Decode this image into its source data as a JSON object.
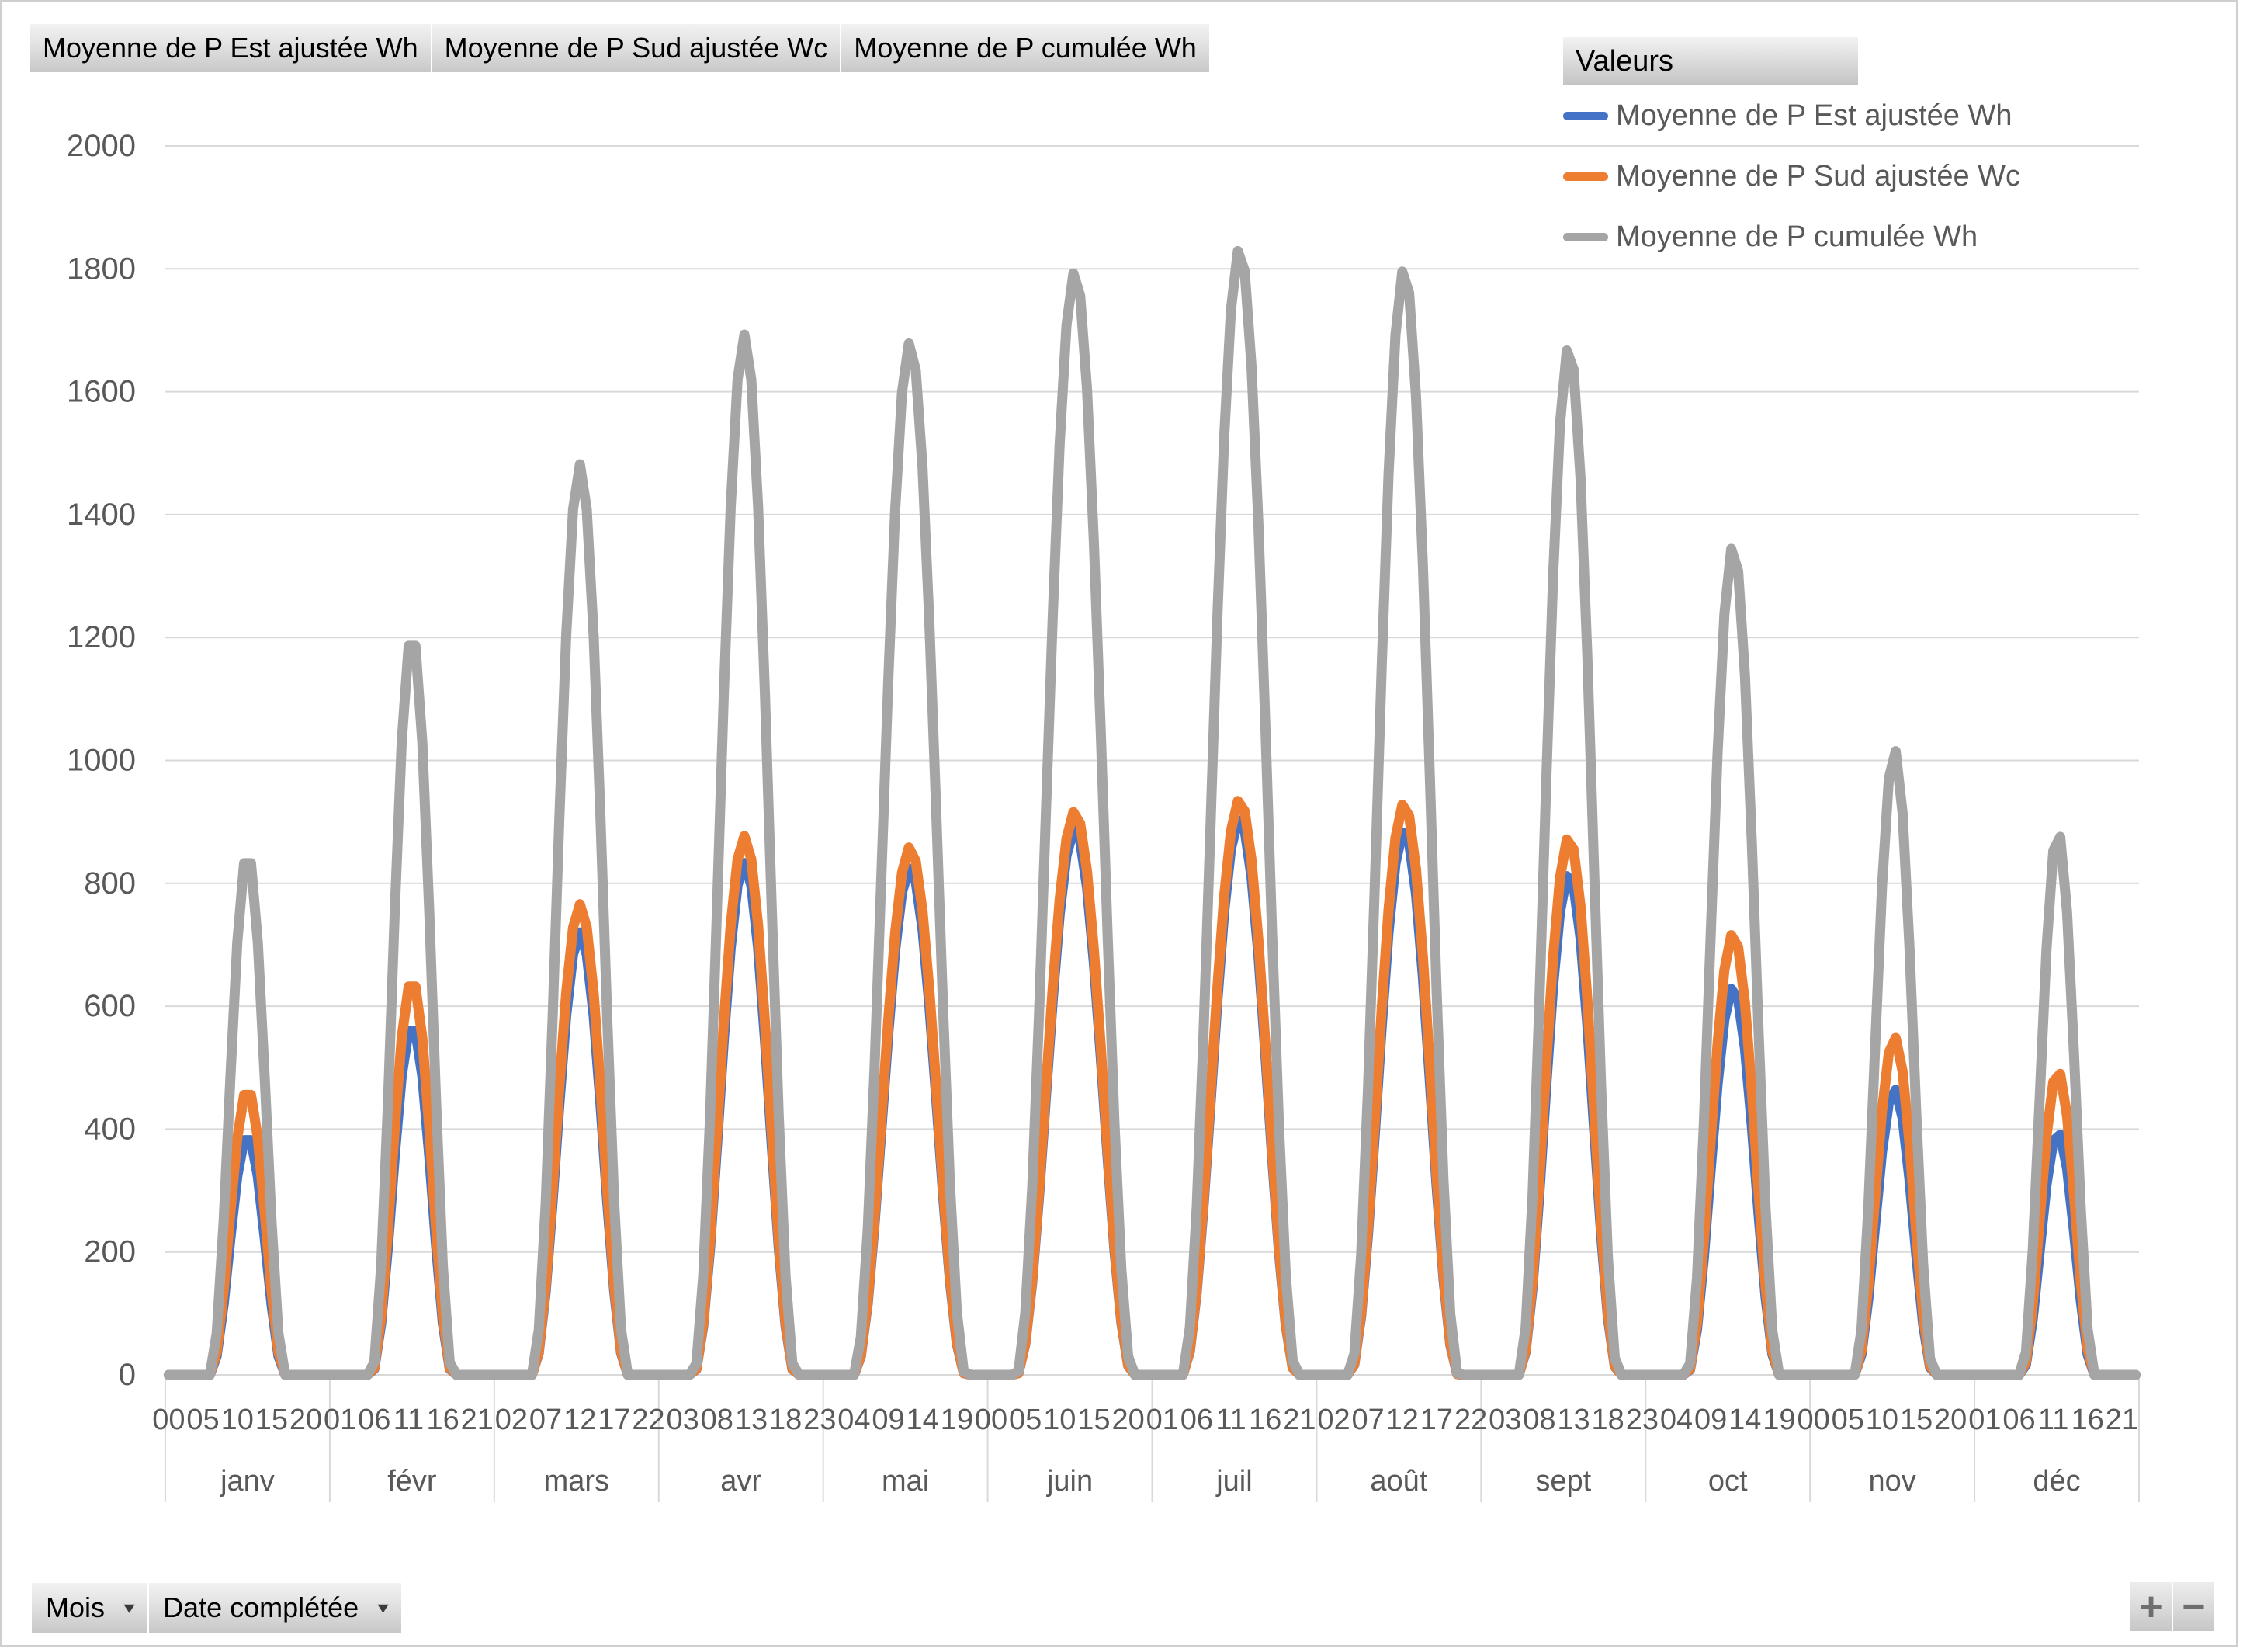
{
  "field_buttons": [
    {
      "label": "Moyenne de P Est ajustée Wh"
    },
    {
      "label": "Moyenne de P Sud ajustée Wc"
    },
    {
      "label": "Moyenne de P cumulée Wh"
    }
  ],
  "legend": {
    "title": "Valeurs",
    "items": [
      {
        "label": "Moyenne de P Est ajustée Wh",
        "color": "#4472C4"
      },
      {
        "label": "Moyenne de P Sud ajustée Wc",
        "color": "#ED7D31"
      },
      {
        "label": "Moyenne de P cumulée Wh",
        "color": "#A5A5A5"
      }
    ]
  },
  "bottom_field_buttons": [
    {
      "label": "Mois",
      "arrow": "▾"
    },
    {
      "label": "Date complétée",
      "arrow": "▾"
    }
  ],
  "zoom_buttons": {
    "plus": "+",
    "minus": "−"
  },
  "chart_data": {
    "type": "line",
    "title": "",
    "xlabel": "",
    "ylabel": "",
    "ylim": [
      0,
      2000
    ],
    "y_tick_step": 200,
    "y_tick_labels": [
      "0",
      "200",
      "400",
      "600",
      "800",
      "1000",
      "1200",
      "1400",
      "1600",
      "1800",
      "2000"
    ],
    "grid": "horizontal",
    "legend_position": "top-right",
    "months": [
      "janv",
      "févr",
      "mars",
      "avr",
      "mai",
      "juin",
      "juil",
      "août",
      "sept",
      "oct",
      "nov",
      "déc"
    ],
    "hours_per_month": 24,
    "hour_tick_interval": 5,
    "hour_tick_labels": [
      "00",
      "05",
      "10",
      "15",
      "20",
      "01",
      "06",
      "11",
      "16",
      "21",
      "02",
      "07",
      "12",
      "17",
      "22",
      "03",
      "08",
      "13",
      "18",
      "23",
      "04",
      "09",
      "14",
      "19",
      "00",
      "05",
      "10",
      "15",
      "20",
      "01",
      "06",
      "11",
      "16",
      "21",
      "02",
      "07",
      "12",
      "17",
      "22",
      "03",
      "08",
      "13",
      "18",
      "23",
      "04",
      "09",
      "14",
      "19",
      "00",
      "05",
      "10",
      "15",
      "20",
      "01",
      "06",
      "11",
      "16",
      "21"
    ],
    "daylight_window_by_month": [
      [
        6,
        17
      ],
      [
        5.5,
        17.5
      ],
      [
        5,
        19
      ],
      [
        4.5,
        19.5
      ],
      [
        4,
        20.3
      ],
      [
        3.7,
        20.7
      ],
      [
        3.9,
        20.6
      ],
      [
        4.3,
        20.2
      ],
      [
        5,
        19.6
      ],
      [
        5.5,
        19
      ],
      [
        6,
        17.6
      ],
      [
        6.3,
        17
      ]
    ],
    "curve_model": "value(h) = peak * sin(pi*(h-sunrise)/(sunset-sunrise))^2, 0 outside daylight window",
    "series": [
      {
        "name": "Moyenne de P Est ajustée Wh",
        "color": "#4472C4",
        "peak_by_month": [
          390,
          570,
          720,
          833,
          825,
          888,
          905,
          885,
          815,
          630,
          465,
          395
        ]
      },
      {
        "name": "Moyenne de P Sud ajustée Wc",
        "color": "#ED7D31",
        "peak_by_month": [
          465,
          643,
          766,
          877,
          859,
          917,
          936,
          930,
          875,
          718,
          550,
          495
        ]
      },
      {
        "name": "Moyenne de P cumulée Wh",
        "color": "#A5A5A5",
        "peak_by_month": [
          850,
          1207,
          1482,
          1693,
          1680,
          1795,
          1833,
          1800,
          1674,
          1349,
          1018,
          885
        ]
      }
    ],
    "gridline_color": "#D9D9D9",
    "axis_text_color": "#595959"
  }
}
